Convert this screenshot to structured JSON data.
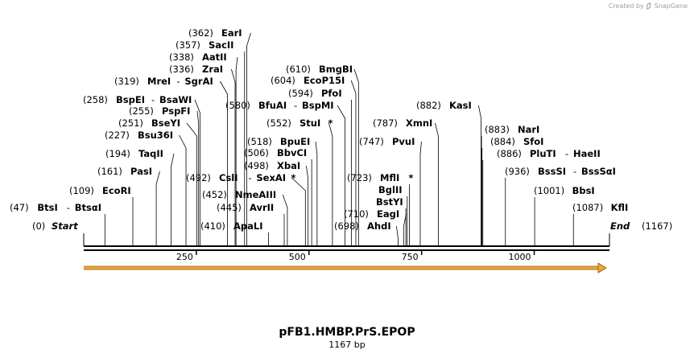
{
  "attribution": {
    "text": "Created by",
    "brand": "SnapGene"
  },
  "plasmid": {
    "name": "pFB1.HMBP.PrS.EPOP",
    "length_label": "1167 bp",
    "length_bp": 1167
  },
  "start_label": {
    "pos": "(0)",
    "name": "Start"
  },
  "end_label": {
    "name": "End",
    "pos": "(1167)"
  },
  "ruler_ticks": [
    "250",
    "500",
    "750",
    "1000"
  ],
  "ruler_tick_values": [
    250,
    500,
    750,
    1000
  ],
  "feature_arrow": {
    "start_bp": 0,
    "end_bp": 1167,
    "color": "#f0a830"
  },
  "sites": [
    {
      "pos": "(47)",
      "name": "BtsI",
      "name2": "BtsαI",
      "bp": 47,
      "star": ""
    },
    {
      "pos": "(109)",
      "name": "EcoRI",
      "name2": "",
      "bp": 109,
      "star": ""
    },
    {
      "pos": "(161)",
      "name": "PasI",
      "name2": "",
      "bp": 161,
      "star": ""
    },
    {
      "pos": "(194)",
      "name": "TaqII",
      "name2": "",
      "bp": 194,
      "star": ""
    },
    {
      "pos": "(227)",
      "name": "Bsu36I",
      "name2": "",
      "bp": 227,
      "star": ""
    },
    {
      "pos": "(251)",
      "name": "BseYI",
      "name2": "",
      "bp": 251,
      "star": ""
    },
    {
      "pos": "(255)",
      "name": "PspFI",
      "name2": "",
      "bp": 255,
      "star": ""
    },
    {
      "pos": "(258)",
      "name": "BspEI",
      "name2": "BsaWI",
      "bp": 258,
      "star": ""
    },
    {
      "pos": "(319)",
      "name": "MreI",
      "name2": "SgrAI",
      "bp": 319,
      "star": ""
    },
    {
      "pos": "(336)",
      "name": "ZraI",
      "name2": "",
      "bp": 336,
      "star": ""
    },
    {
      "pos": "(338)",
      "name": "AatII",
      "name2": "",
      "bp": 338,
      "star": ""
    },
    {
      "pos": "(357)",
      "name": "SacII",
      "name2": "",
      "bp": 357,
      "star": ""
    },
    {
      "pos": "(362)",
      "name": "EarI",
      "name2": "",
      "bp": 362,
      "star": ""
    },
    {
      "pos": "(410)",
      "name": "ApaLI",
      "name2": "",
      "bp": 410,
      "star": ""
    },
    {
      "pos": "(445)",
      "name": "AvrII",
      "name2": "",
      "bp": 445,
      "star": ""
    },
    {
      "pos": "(452)",
      "name": "NmeAIII",
      "name2": "",
      "bp": 452,
      "star": ""
    },
    {
      "pos": "(492)",
      "name": "CslI",
      "name2": "SexAI",
      "bp": 492,
      "star": "*"
    },
    {
      "pos": "(498)",
      "name": "XbaI",
      "name2": "",
      "bp": 498,
      "star": ""
    },
    {
      "pos": "(506)",
      "name": "BbvCI",
      "name2": "",
      "bp": 506,
      "star": ""
    },
    {
      "pos": "(518)",
      "name": "BpuEI",
      "name2": "",
      "bp": 518,
      "star": ""
    },
    {
      "pos": "(552)",
      "name": "StuI",
      "name2": "",
      "bp": 552,
      "star": "*"
    },
    {
      "pos": "(580)",
      "name": "BfuAI",
      "name2": "BspMI",
      "bp": 580,
      "star": ""
    },
    {
      "pos": "(594)",
      "name": "PfoI",
      "name2": "",
      "bp": 594,
      "star": ""
    },
    {
      "pos": "(604)",
      "name": "EcoP15I",
      "name2": "",
      "bp": 604,
      "star": ""
    },
    {
      "pos": "(610)",
      "name": "BmgBI",
      "name2": "",
      "bp": 610,
      "star": ""
    },
    {
      "pos": "(698)",
      "name": "AhdI",
      "name2": "",
      "bp": 698,
      "star": ""
    },
    {
      "pos": "(710)",
      "name": "EagI",
      "name2": "",
      "bp": 710,
      "star": ""
    },
    {
      "pos": "",
      "name": "BstYI",
      "name2": "",
      "bp": 715,
      "star": ""
    },
    {
      "pos": "",
      "name": "BglII",
      "name2": "",
      "bp": 718,
      "star": ""
    },
    {
      "pos": "(723)",
      "name": "MflI",
      "name2": "",
      "bp": 723,
      "star": "*"
    },
    {
      "pos": "(747)",
      "name": "PvuI",
      "name2": "",
      "bp": 747,
      "star": ""
    },
    {
      "pos": "(787)",
      "name": "XmnI",
      "name2": "",
      "bp": 787,
      "star": ""
    },
    {
      "pos": "(882)",
      "name": "KasI",
      "name2": "",
      "bp": 882,
      "star": ""
    },
    {
      "pos": "(883)",
      "name": "NarI",
      "name2": "",
      "bp": 883,
      "star": ""
    },
    {
      "pos": "(884)",
      "name": "SfoI",
      "name2": "",
      "bp": 884,
      "star": ""
    },
    {
      "pos": "(886)",
      "name": "PluTI",
      "name2": "HaeII",
      "bp": 886,
      "star": ""
    },
    {
      "pos": "(936)",
      "name": "BssSI",
      "name2": "BssSαI",
      "bp": 936,
      "star": ""
    },
    {
      "pos": "(1001)",
      "name": "BbsI",
      "name2": "",
      "bp": 1001,
      "star": ""
    },
    {
      "pos": "(1087)",
      "name": "KflI",
      "name2": "",
      "bp": 1087,
      "star": ""
    }
  ]
}
